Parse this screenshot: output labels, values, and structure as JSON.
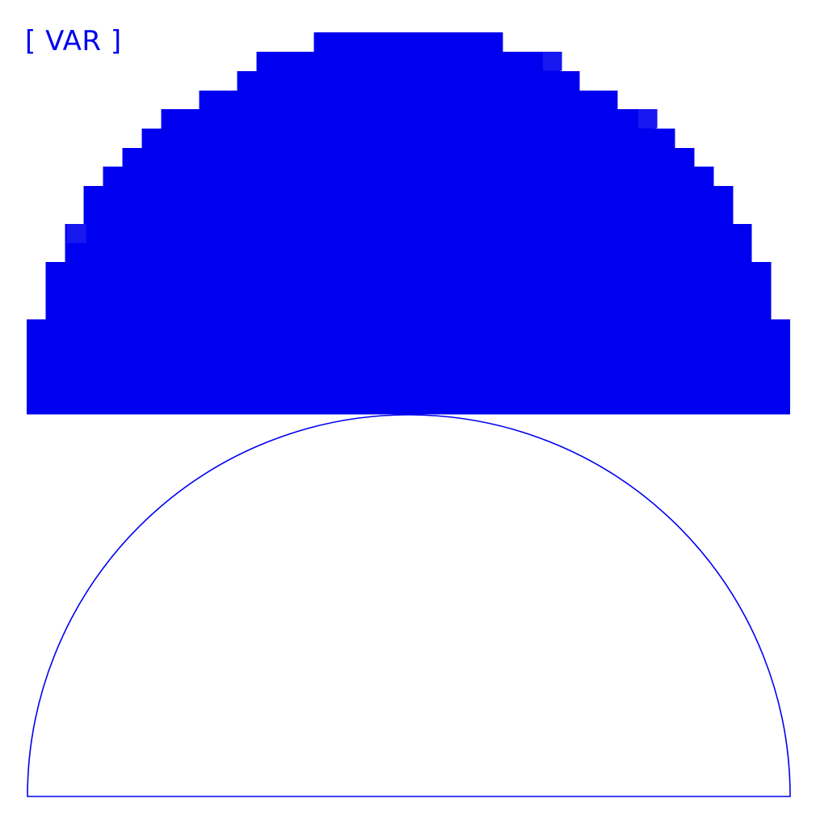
{
  "logo": {
    "text": "[ VAR ]"
  },
  "colors": {
    "primary": "#0000f0",
    "accent_light": "#1717f0",
    "background": "#ffffff"
  },
  "figures": {
    "pixelated_semicircle": {
      "description_name": "filled-stepped-semicircle"
    },
    "outline_semicircle": {
      "description_name": "outlined-semicircle"
    }
  }
}
